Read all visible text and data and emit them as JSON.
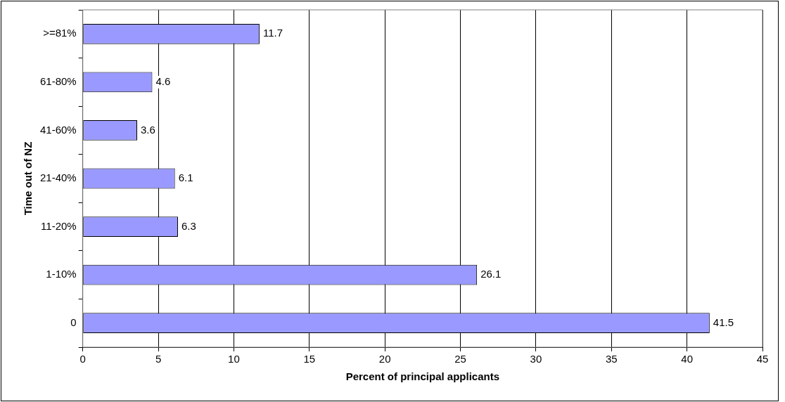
{
  "chart_data": {
    "type": "bar",
    "orientation": "horizontal",
    "categories": [
      ">=81%",
      "61-80%",
      "41-60%",
      "21-40%",
      "11-20%",
      "1-10%",
      "0"
    ],
    "values": [
      11.7,
      4.6,
      3.6,
      6.1,
      6.3,
      26.1,
      41.5
    ],
    "color": "#9999ff",
    "xlabel": "Percent of principal applicants",
    "ylabel": "Time out of NZ",
    "xlim": [
      0,
      45
    ],
    "xticks": [
      0,
      5,
      10,
      15,
      20,
      25,
      30,
      35,
      40,
      45
    ],
    "grid": "x",
    "data_labels": true
  }
}
